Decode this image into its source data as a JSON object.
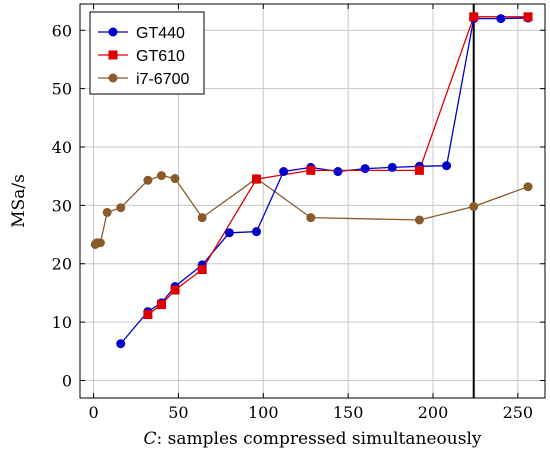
{
  "chart_data": {
    "type": "line",
    "title": "",
    "xlabel_italic": "C",
    "xlabel_rest": ": samples compressed simultaneously",
    "ylabel": "MSa/s",
    "xlim": [
      -8,
      266
    ],
    "ylim": [
      -3,
      64.5
    ],
    "xticks": [
      0,
      50,
      100,
      150,
      200,
      250
    ],
    "yticks": [
      0,
      10,
      20,
      30,
      40,
      50,
      60
    ],
    "grid": true,
    "legend_position": "top-left",
    "vertical_marker_x": 224,
    "series": [
      {
        "name": "GT440",
        "color": "#0000cc",
        "marker": "circle",
        "x": [
          16,
          32,
          40,
          48,
          64,
          80,
          96,
          112,
          128,
          144,
          160,
          176,
          192,
          208,
          224,
          240,
          256
        ],
        "y": [
          6.3,
          11.8,
          13.3,
          16.1,
          19.8,
          25.3,
          25.5,
          35.8,
          36.5,
          35.8,
          36.3,
          36.5,
          36.7,
          36.8,
          62.0,
          62.0,
          62.1
        ]
      },
      {
        "name": "GT610",
        "color": "#dd0000",
        "marker": "square",
        "x": [
          32,
          40,
          48,
          64,
          96,
          128,
          192,
          224,
          256
        ],
        "y": [
          11.3,
          13.0,
          15.5,
          19.0,
          34.5,
          36.0,
          36.0,
          62.3,
          62.3
        ]
      },
      {
        "name": "i7-6700",
        "color": "#8b5a2b",
        "marker": "circle",
        "x": [
          1,
          2,
          4,
          8,
          16,
          32,
          40,
          48,
          64,
          96,
          128,
          192,
          224,
          256
        ],
        "y": [
          23.3,
          23.6,
          23.6,
          28.8,
          29.6,
          34.3,
          35.1,
          34.6,
          27.9,
          34.6,
          27.9,
          27.5,
          29.8,
          33.2
        ]
      }
    ]
  }
}
